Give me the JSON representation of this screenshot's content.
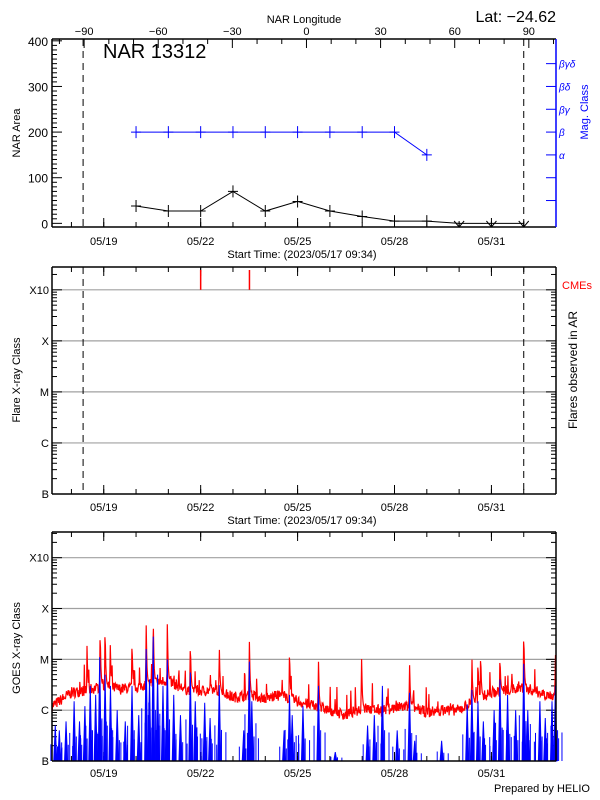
{
  "header": {
    "lat_label": "Lat: −24.62",
    "nar_label": "NAR 13312"
  },
  "footer": {
    "credit": "Prepared by HELIO"
  },
  "colors": {
    "axis": "#000000",
    "mag": "#0000ff",
    "cme": "#ff0000",
    "grid": "#a0a0a0",
    "goes_long": "#ff0000",
    "goes_short": "#0000ff"
  },
  "chart_data": [
    {
      "type": "line",
      "title": "NAR 13312",
      "xlabel": "Start Time: (2023/05/17 09:34)",
      "ylabel": "NAR Area",
      "y2label": "Mag. Class",
      "top_axis_label": "NAR Longitude",
      "xlim": [
        "2023-05-17T09:34",
        "2023-06-01T23:58"
      ],
      "xticks": [
        "2023-05-19",
        "2023-05-22",
        "2023-05-25",
        "2023-05-28",
        "2023-05-31"
      ],
      "xtick_labels": [
        "05/19",
        "05/22",
        "05/25",
        "05/28",
        "05/31"
      ],
      "top_xlim": [
        -103,
        101
      ],
      "top_ticks": [
        -90,
        -60,
        -30,
        0,
        30,
        60,
        90
      ],
      "top_tick_labels": [
        "−90",
        "−60",
        "−30",
        "0",
        "30",
        "60",
        "90"
      ],
      "ylim": [
        -8,
        404
      ],
      "yticks": [
        0,
        100,
        200,
        300,
        400
      ],
      "ytick_labels": [
        "0",
        "100",
        "200",
        "300",
        "400"
      ],
      "limb_lines": [
        "2023-05-18T08:40",
        "2023-06-01T00:00"
      ],
      "mag_axis": {
        "ticks": [
          50,
          100,
          150,
          200,
          250,
          300,
          350
        ],
        "labels": [
          "",
          "",
          "α",
          "β",
          "βγ",
          "βδ",
          "βγδ"
        ]
      },
      "series": [
        {
          "color": "#000000",
          "x": [
            "2023-05-20",
            "2023-05-21",
            "2023-05-22",
            "2023-05-23",
            "2023-05-24",
            "2023-05-25",
            "2023-05-26",
            "2023-05-27",
            "2023-05-28",
            "2023-05-29",
            "2023-05-30",
            "2023-05-31",
            "2023-06-01"
          ],
          "y": [
            38,
            27,
            27,
            70,
            27,
            48,
            27,
            15,
            5,
            5,
            0,
            0,
            0
          ]
        },
        {
          "color": "#0000ff",
          "x": [
            "2023-05-20",
            "2023-05-21",
            "2023-05-22",
            "2023-05-23",
            "2023-05-24",
            "2023-05-25",
            "2023-05-26",
            "2023-05-27",
            "2023-05-28",
            "2023-05-29"
          ],
          "y": [
            "β",
            "β",
            "β",
            "β",
            "β",
            "β",
            "β",
            "β",
            "β",
            "α"
          ]
        }
      ]
    },
    {
      "type": "bar",
      "xlabel": "Start Time: (2023/05/17 09:34)",
      "ylabel": "Flare X-ray Class",
      "y2label": "Flares observed in AR",
      "xlim": [
        "2023-05-17T09:34",
        "2023-06-01T23:58"
      ],
      "xticks": [
        "2023-05-19",
        "2023-05-22",
        "2023-05-25",
        "2023-05-28",
        "2023-05-31"
      ],
      "xtick_labels": [
        "05/19",
        "05/22",
        "05/25",
        "05/28",
        "05/31"
      ],
      "yscale": "log",
      "ylim": [
        1e-07,
        0.0028
      ],
      "yticks": [
        1e-07,
        1e-06,
        1e-05,
        0.0001,
        0.001
      ],
      "ytick_labels": [
        "B",
        "C",
        "M",
        "X",
        "X10"
      ],
      "grid": true,
      "limb_lines": [
        "2023-05-18T08:40",
        "2023-06-01T00:00"
      ],
      "flares": [],
      "cme_label": "CMEs",
      "cmes": [
        "2023-05-22T00:00",
        "2023-05-23T12:15"
      ]
    },
    {
      "type": "line",
      "ylabel": "GOES X-ray Class",
      "yscale": "log",
      "xlim": [
        "2023-05-17T09:34",
        "2023-06-01T23:58"
      ],
      "xticks": [
        "2023-05-19",
        "2023-05-22",
        "2023-05-25",
        "2023-05-28",
        "2023-05-31"
      ],
      "xtick_labels": [
        "05/19",
        "05/22",
        "05/25",
        "05/28",
        "05/31"
      ],
      "ylim": [
        1e-07,
        0.0032
      ],
      "yticks": [
        1e-07,
        1e-06,
        1e-05,
        0.0001,
        0.001
      ],
      "ytick_labels": [
        "B",
        "C",
        "M",
        "X",
        "X10"
      ],
      "grid": true,
      "series": [
        {
          "color": "#ff0000",
          "baseline": [
            [
              "2023-05-17T09:34",
              1.2e-06
            ],
            [
              "2023-05-18T00:00",
              2.2e-06
            ],
            [
              "2023-05-18T12:00",
              2.5e-06
            ],
            [
              "2023-05-19T00:00",
              3e-06
            ],
            [
              "2023-05-19T12:00",
              2.6e-06
            ],
            [
              "2023-05-20T00:00",
              2.8e-06
            ],
            [
              "2023-05-20T12:00",
              3.5e-06
            ],
            [
              "2023-05-21T00:00",
              3.8e-06
            ],
            [
              "2023-05-21T12:00",
              2.6e-06
            ],
            [
              "2023-05-22T00:00",
              2.4e-06
            ],
            [
              "2023-05-22T12:00",
              2.5e-06
            ],
            [
              "2023-05-23T00:00",
              1.8e-06
            ],
            [
              "2023-05-23T12:00",
              2e-06
            ],
            [
              "2023-05-24T00:00",
              1.7e-06
            ],
            [
              "2023-05-24T12:00",
              2e-06
            ],
            [
              "2023-05-25T00:00",
              1.5e-06
            ],
            [
              "2023-05-25T12:00",
              1.2e-06
            ],
            [
              "2023-05-26T00:00",
              1e-06
            ],
            [
              "2023-05-26T12:00",
              8e-07
            ],
            [
              "2023-05-27T00:00",
              1.1e-06
            ],
            [
              "2023-05-27T12:00",
              1e-06
            ],
            [
              "2023-05-28T00:00",
              1.1e-06
            ],
            [
              "2023-05-28T12:00",
              1.2e-06
            ],
            [
              "2023-05-29T00:00",
              9e-07
            ],
            [
              "2023-05-29T12:00",
              1e-06
            ],
            [
              "2023-05-30T00:00",
              1e-06
            ],
            [
              "2023-05-30T12:00",
              1.6e-06
            ],
            [
              "2023-05-31T00:00",
              2.2e-06
            ],
            [
              "2023-05-31T12:00",
              2.5e-06
            ],
            [
              "2023-06-01T00:00",
              2.8e-06
            ],
            [
              "2023-06-01T12:00",
              2.2e-06
            ],
            [
              "2023-06-01T23:58",
              1.8e-06
            ]
          ],
          "peaks": [
            [
              "2023-05-18T11:36",
              2.2e-05
            ],
            [
              "2023-05-18T21:20",
              4.8e-05
            ],
            [
              "2023-05-19T01:00",
              5.7e-05
            ],
            [
              "2023-05-19T04:50",
              2.5e-05
            ],
            [
              "2023-05-19T21:00",
              2.9e-05
            ],
            [
              "2023-05-20T07:30",
              6.8e-05
            ],
            [
              "2023-05-20T12:45",
              9.3e-05
            ],
            [
              "2023-05-20T23:15",
              5.5e-05
            ],
            [
              "2023-05-21T16:20",
              2.6e-05
            ],
            [
              "2023-05-22T13:50",
              2e-05
            ],
            [
              "2023-05-23T12:10",
              3.1e-05
            ],
            [
              "2023-05-24T18:00",
              2e-05
            ],
            [
              "2023-05-25T15:30",
              1.2e-05
            ],
            [
              "2023-05-26T23:30",
              1.4e-05
            ],
            [
              "2023-05-28T11:10",
              1e-05
            ],
            [
              "2023-05-30T09:30",
              1.3e-05
            ],
            [
              "2023-05-30T14:00",
              1.1e-05
            ],
            [
              "2023-05-30T16:00",
              1.6e-05
            ],
            [
              "2023-05-31T06:20",
              1.3e-05
            ],
            [
              "2023-06-01T00:00",
              4.5e-05
            ],
            [
              "2023-06-01T23:30",
              1.6e-05
            ]
          ]
        },
        {
          "color": "#0000ff",
          "peaks": [
            [
              "2023-05-17T12:00",
              5e-07
            ],
            [
              "2023-05-17T15:00",
              4e-07
            ],
            [
              "2023-05-17T20:00",
              6e-07
            ],
            [
              "2023-05-18T02:00",
              1.5e-06
            ],
            [
              "2023-05-18T06:00",
              6e-07
            ],
            [
              "2023-05-18T10:00",
              1.2e-06
            ],
            [
              "2023-05-18T14:00",
              3e-06
            ],
            [
              "2023-05-18T18:00",
              2e-06
            ],
            [
              "2023-05-18T21:00",
              1.1e-05
            ],
            [
              "2023-05-19T01:00",
              5e-06
            ],
            [
              "2023-05-19T05:00",
              3e-06
            ],
            [
              "2023-05-19T10:00",
              1e-06
            ],
            [
              "2023-05-19T16:00",
              6e-07
            ],
            [
              "2023-05-19T21:00",
              3e-06
            ],
            [
              "2023-05-20T02:00",
              8e-07
            ],
            [
              "2023-05-20T07:30",
              1.6e-05
            ],
            [
              "2023-05-20T10:00",
              4e-06
            ],
            [
              "2023-05-20T12:45",
              2.8e-05
            ],
            [
              "2023-05-20T16:00",
              5e-06
            ],
            [
              "2023-05-20T20:00",
              3e-06
            ],
            [
              "2023-05-20T23:15",
              1e-05
            ],
            [
              "2023-05-21T04:00",
              2e-06
            ],
            [
              "2023-05-21T09:00",
              8e-07
            ],
            [
              "2023-05-21T16:20",
              5.5e-06
            ],
            [
              "2023-05-21T20:00",
              1.5e-06
            ],
            [
              "2023-05-22T03:00",
              1.4e-06
            ],
            [
              "2023-05-22T07:00",
              7e-07
            ],
            [
              "2023-05-22T13:50",
              3.1e-06
            ],
            [
              "2023-05-23T08:00",
              4e-07
            ],
            [
              "2023-05-23T12:10",
              9e-06
            ],
            [
              "2023-05-23T14:00",
              1.5e-06
            ],
            [
              "2023-05-24T14:00",
              4e-07
            ],
            [
              "2023-05-24T18:00",
              2e-06
            ],
            [
              "2023-05-24T20:00",
              8e-07
            ],
            [
              "2023-05-25T04:00",
              1.2e-06
            ],
            [
              "2023-05-25T15:30",
              3e-06
            ],
            [
              "2023-05-26T04:00",
              1.5e-07
            ],
            [
              "2023-05-27T04:00",
              5e-07
            ],
            [
              "2023-05-27T09:00",
              8e-07
            ],
            [
              "2023-05-27T15:00",
              3e-06
            ],
            [
              "2023-05-28T02:00",
              4e-07
            ],
            [
              "2023-05-28T11:10",
              2.2e-06
            ],
            [
              "2023-05-28T15:00",
              2.5e-07
            ],
            [
              "2023-05-29T11:00",
              2.5e-07
            ],
            [
              "2023-05-30T06:00",
              1.3e-06
            ],
            [
              "2023-05-30T09:30",
              2.5e-06
            ],
            [
              "2023-05-30T14:00",
              1.5e-06
            ],
            [
              "2023-05-30T18:00",
              6e-07
            ],
            [
              "2023-05-31T02:00",
              1e-06
            ],
            [
              "2023-05-31T06:20",
              4e-06
            ],
            [
              "2023-05-31T12:00",
              2e-06
            ],
            [
              "2023-05-31T18:00",
              1e-06
            ],
            [
              "2023-06-01T00:00",
              8.2e-06
            ],
            [
              "2023-06-01T03:00",
              1e-06
            ],
            [
              "2023-06-01T12:00",
              1.5e-06
            ],
            [
              "2023-06-01T16:00",
              7e-07
            ],
            [
              "2023-06-01T21:00",
              1.5e-06
            ],
            [
              "2023-06-01T23:30",
              3e-06
            ]
          ]
        }
      ]
    }
  ]
}
